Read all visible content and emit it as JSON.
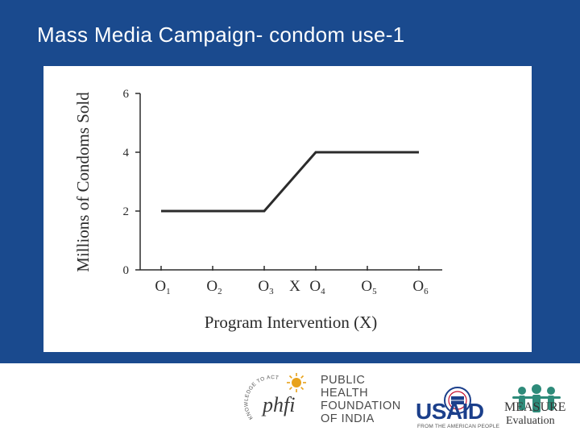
{
  "slide": {
    "title": "Mass Media Campaign- condom use-1"
  },
  "chart_data": {
    "type": "line",
    "title": "",
    "xlabel": "Program Intervention (X)",
    "ylabel": "Millions of Condoms Sold",
    "ylim": [
      0,
      6
    ],
    "yticks": [
      "0",
      "2",
      "4",
      "6"
    ],
    "categories": [
      "O1",
      "O2",
      "O3",
      "O4",
      "O5",
      "O6"
    ],
    "intervention_label": "X",
    "intervention_between": [
      "O3",
      "O4"
    ],
    "series": [
      {
        "name": "",
        "values": [
          2,
          2,
          2,
          4,
          4,
          4
        ]
      }
    ],
    "grid": false,
    "line_color": "#2b2b2b"
  },
  "footer": {
    "phfi_lines": [
      "PUBLIC",
      "HEALTH",
      "FOUNDATION",
      "OF INDIA"
    ],
    "phfi_mark": "phfi",
    "phfi_arc": "KNOWLEDGE TO ACTION",
    "usaid_word": "USAID",
    "usaid_tag": "FROM THE AMERICAN PEOPLE",
    "measure_word": "MEASURE",
    "measure_sub": "Evaluation"
  }
}
